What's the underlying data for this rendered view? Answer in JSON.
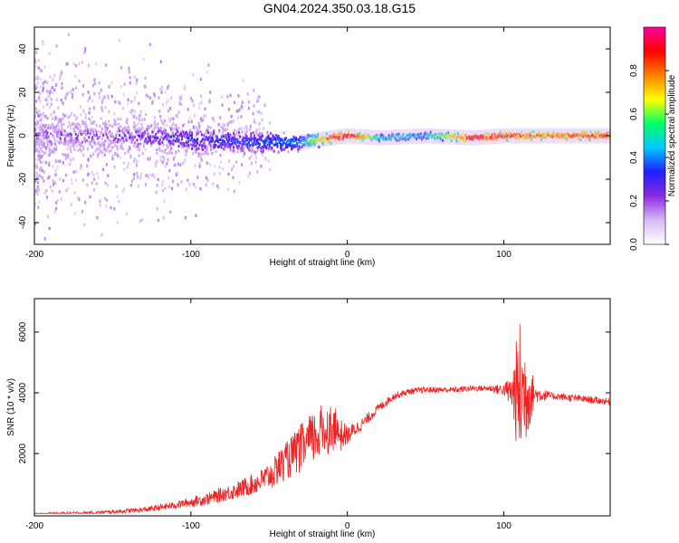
{
  "title": "GN04.2024.350.03.18.G15",
  "chart_data": [
    {
      "type": "heatmap",
      "xlabel": "Height of straight line (km)",
      "ylabel": "Frequency (Hz)",
      "xlim": [
        -200,
        168
      ],
      "ylim": [
        -50,
        50
      ],
      "xticks": [
        -200,
        -100,
        0,
        100
      ],
      "yticks": [
        -40,
        -20,
        0,
        20,
        40
      ],
      "colorbar": {
        "label": "Normalized spectral amplitude",
        "range": [
          0.0,
          1.0
        ],
        "ticks": [
          "0.0",
          "0.2",
          "0.4",
          "0.6",
          "0.8"
        ],
        "colors": [
          "#ffffff",
          "#d9b8f5",
          "#8a2be2",
          "#2020ff",
          "#00c8ff",
          "#00ff66",
          "#ffff00",
          "#ff8000",
          "#ff0000",
          "#ff00a0"
        ]
      },
      "ridge": {
        "x": [
          -200,
          -150,
          -100,
          -60,
          -30,
          -10,
          0,
          20,
          50,
          80,
          100,
          120,
          168
        ],
        "freq": [
          0,
          0,
          -2,
          -3,
          -3,
          -1,
          0,
          -1,
          0,
          -1,
          0,
          0,
          0
        ],
        "amplitude": [
          0.2,
          0.22,
          0.3,
          0.35,
          0.45,
          0.9,
          0.95,
          0.55,
          0.5,
          0.95,
          0.9,
          0.8,
          0.9
        ]
      }
    },
    {
      "type": "line",
      "xlabel": "Height of straight line (km)",
      "ylabel": "SNR (10 * v/v)",
      "xlim": [
        -200,
        168
      ],
      "ylim": [
        -50,
        7100
      ],
      "xticks": [
        -200,
        -100,
        0,
        100
      ],
      "yticks": [
        2000,
        4000,
        6000
      ],
      "color": "#ee2222",
      "envelope": {
        "x": [
          -200,
          -160,
          -130,
          -110,
          -90,
          -70,
          -55,
          -40,
          -30,
          -20,
          -15,
          -10,
          -5,
          0,
          10,
          20,
          30,
          40,
          50,
          60,
          70,
          80,
          90,
          100,
          105,
          110,
          115,
          120,
          130,
          140,
          150,
          160,
          168
        ],
        "y": [
          0,
          50,
          150,
          300,
          500,
          800,
          1100,
          1600,
          2000,
          2400,
          2600,
          2700,
          2600,
          2600,
          3000,
          3500,
          3900,
          4050,
          4100,
          4100,
          4100,
          4150,
          4150,
          4100,
          4000,
          4000,
          4000,
          3950,
          3900,
          3850,
          3800,
          3750,
          3700
        ],
        "noise": [
          50,
          60,
          80,
          120,
          200,
          280,
          400,
          600,
          800,
          900,
          900,
          800,
          600,
          300,
          200,
          150,
          120,
          100,
          100,
          100,
          100,
          100,
          100,
          200,
          600,
          2500,
          1500,
          300,
          120,
          120,
          120,
          120,
          120
        ]
      }
    }
  ]
}
